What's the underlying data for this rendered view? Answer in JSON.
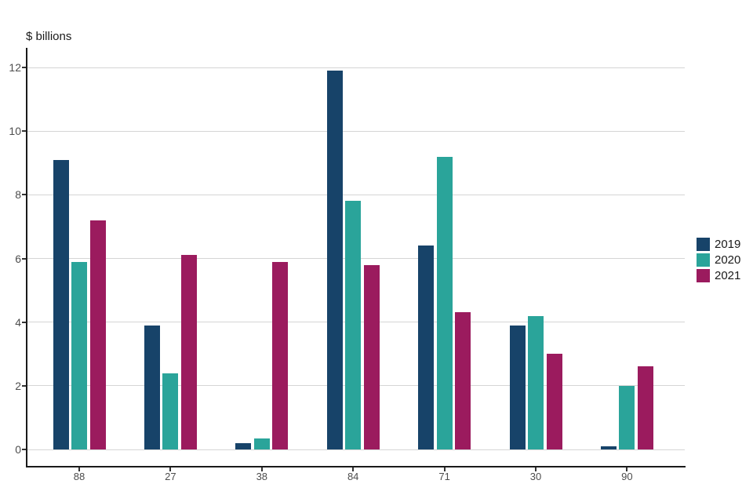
{
  "chart_data": {
    "type": "bar",
    "title": "",
    "y_axis_title": "$ billions",
    "categories": [
      "88",
      "27",
      "38",
      "84",
      "71",
      "30",
      "90"
    ],
    "series": [
      {
        "name": "2019",
        "color": "#174369",
        "values": [
          9.1,
          3.9,
          0.2,
          11.9,
          6.4,
          3.9,
          0.1
        ]
      },
      {
        "name": "2020",
        "color": "#2AA49A",
        "values": [
          5.9,
          2.4,
          0.35,
          7.8,
          9.2,
          4.2,
          2.0
        ]
      },
      {
        "name": "2021",
        "color": "#9B1B5E",
        "values": [
          7.2,
          6.1,
          5.9,
          5.8,
          4.3,
          3.0,
          2.6
        ]
      }
    ],
    "ylim": [
      0,
      12
    ],
    "y_ticks": [
      0,
      2,
      4,
      6,
      8,
      10,
      12
    ],
    "grid": "horizontal-gridlines-on",
    "legend_position": "right-center",
    "colors": {
      "gridline": "#D5D5D5",
      "axis_line": "#1A1A1A",
      "tick_label": "#4D4D4D",
      "text": "#1A1A1A",
      "background": "#FFFFFF"
    }
  }
}
